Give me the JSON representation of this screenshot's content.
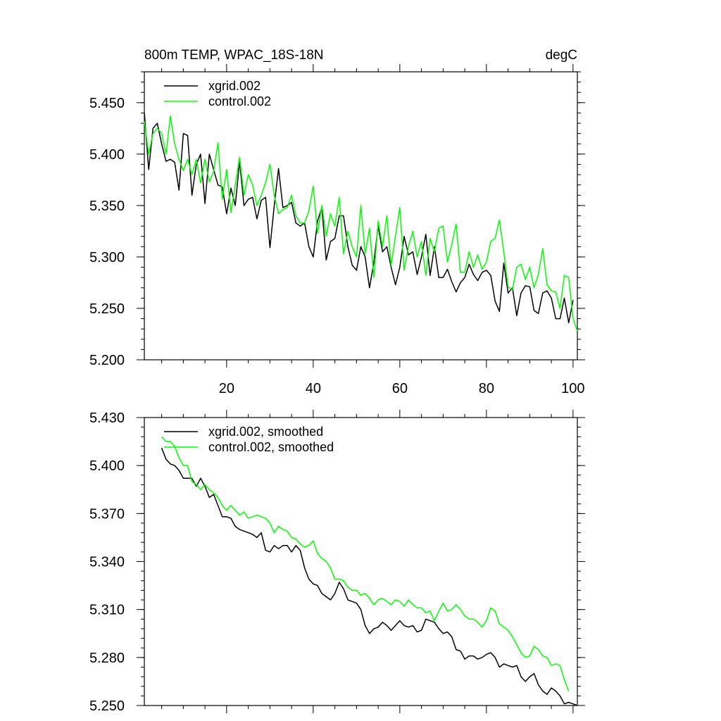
{
  "chart_data": [
    {
      "type": "line",
      "title": "800m TEMP, WPAC_18S-18N",
      "units": "degC",
      "xlim": [
        1,
        101
      ],
      "ylim": [
        5.2,
        5.48
      ],
      "x_ticks": [
        20,
        40,
        60,
        80,
        100
      ],
      "x_tick_labels": [
        "20",
        "40",
        "60",
        "80",
        "100"
      ],
      "y_ticks": [
        5.2,
        5.25,
        5.3,
        5.35,
        5.4,
        5.45
      ],
      "y_tick_labels": [
        "5.200",
        "5.250",
        "5.300",
        "5.350",
        "5.400",
        "5.450"
      ],
      "legend_position": "top-left",
      "x_start": 1,
      "series": [
        {
          "name": "xgrid.002",
          "color": "#000000",
          "values": [
            5.44,
            5.385,
            5.425,
            5.43,
            5.41,
            5.393,
            5.395,
            5.392,
            5.365,
            5.42,
            5.418,
            5.36,
            5.39,
            5.4,
            5.352,
            5.4,
            5.385,
            5.37,
            5.368,
            5.342,
            5.367,
            5.35,
            5.393,
            5.35,
            5.356,
            5.358,
            5.337,
            5.355,
            5.358,
            5.309,
            5.35,
            5.386,
            5.348,
            5.35,
            5.353,
            5.333,
            5.33,
            5.333,
            5.31,
            5.3,
            5.335,
            5.348,
            5.297,
            5.315,
            5.318,
            5.34,
            5.34,
            5.31,
            5.292,
            5.287,
            5.31,
            5.3,
            5.27,
            5.295,
            5.33,
            5.305,
            5.31,
            5.29,
            5.273,
            5.29,
            5.32,
            5.302,
            5.305,
            5.283,
            5.3,
            5.322,
            5.282,
            5.31,
            5.28,
            5.28,
            5.288,
            5.276,
            5.266,
            5.275,
            5.28,
            5.293,
            5.283,
            5.277,
            5.285,
            5.287,
            5.282,
            5.257,
            5.247,
            5.294,
            5.265,
            5.27,
            5.243,
            5.265,
            5.272,
            5.271,
            5.248,
            5.245,
            5.265,
            5.267,
            5.26,
            5.24,
            5.24,
            5.26,
            5.236,
            5.258
          ]
        },
        {
          "name": "control.002",
          "color": "#00ff00",
          "values": [
            5.432,
            5.4,
            5.42,
            5.425,
            5.42,
            5.4,
            5.437,
            5.41,
            5.395,
            5.384,
            5.395,
            5.38,
            5.395,
            5.372,
            5.395,
            5.373,
            5.383,
            5.411,
            5.356,
            5.385,
            5.343,
            5.37,
            5.397,
            5.36,
            5.38,
            5.37,
            5.35,
            5.36,
            5.372,
            5.39,
            5.36,
            5.342,
            5.346,
            5.348,
            5.36,
            5.34,
            5.333,
            5.333,
            5.345,
            5.369,
            5.323,
            5.35,
            5.32,
            5.342,
            5.33,
            5.358,
            5.303,
            5.325,
            5.31,
            5.3,
            5.35,
            5.303,
            5.328,
            5.28,
            5.335,
            5.31,
            5.34,
            5.292,
            5.32,
            5.348,
            5.287,
            5.31,
            5.325,
            5.3,
            5.315,
            5.282,
            5.318,
            5.305,
            5.328,
            5.33,
            5.295,
            5.312,
            5.332,
            5.285,
            5.285,
            5.305,
            5.29,
            5.302,
            5.288,
            5.295,
            5.315,
            5.318,
            5.336,
            5.305,
            5.271,
            5.268,
            5.29,
            5.293,
            5.278,
            5.29,
            5.27,
            5.283,
            5.308,
            5.273,
            5.267,
            5.266,
            5.25,
            5.282,
            5.28,
            5.24,
            5.228
          ]
        }
      ]
    },
    {
      "type": "line",
      "title": "",
      "xlim": [
        1,
        101
      ],
      "ylim": [
        5.25,
        5.43
      ],
      "x_ticks": [
        20,
        40,
        60,
        80,
        100
      ],
      "y_ticks": [
        5.25,
        5.28,
        5.31,
        5.34,
        5.37,
        5.4,
        5.43
      ],
      "y_tick_labels": [
        "5.250",
        "5.280",
        "5.310",
        "5.340",
        "5.370",
        "5.400",
        "5.430"
      ],
      "legend_position": "top-left",
      "x_start": 5,
      "series": [
        {
          "name": "xgrid.002, smoothed",
          "color": "#000000",
          "values": [
            5.411,
            5.404,
            5.401,
            5.4,
            5.397,
            5.392,
            5.392,
            5.392,
            5.387,
            5.392,
            5.387,
            5.38,
            5.382,
            5.375,
            5.368,
            5.368,
            5.367,
            5.362,
            5.36,
            5.359,
            5.358,
            5.357,
            5.355,
            5.358,
            5.347,
            5.346,
            5.35,
            5.348,
            5.35,
            5.35,
            5.346,
            5.35,
            5.347,
            5.336,
            5.329,
            5.326,
            5.325,
            5.32,
            5.318,
            5.316,
            5.32,
            5.327,
            5.323,
            5.316,
            5.315,
            5.314,
            5.31,
            5.3,
            5.295,
            5.298,
            5.299,
            5.302,
            5.3,
            5.297,
            5.3,
            5.303,
            5.3,
            5.299,
            5.3,
            5.296,
            5.297,
            5.304,
            5.303,
            5.302,
            5.298,
            5.295,
            5.296,
            5.293,
            5.285,
            5.284,
            5.279,
            5.281,
            5.281,
            5.279,
            5.28,
            5.282,
            5.283,
            5.28,
            5.274,
            5.276,
            5.275,
            5.274,
            5.275,
            5.268,
            5.265,
            5.268,
            5.27,
            5.263,
            5.259,
            5.257,
            5.261,
            5.259,
            5.256,
            5.251,
            5.252,
            5.251,
            5.25
          ]
        },
        {
          "name": "control.002, smoothed",
          "color": "#00ff00",
          "values": [
            5.418,
            5.415,
            5.415,
            5.412,
            5.405,
            5.4,
            5.4,
            5.39,
            5.388,
            5.385,
            5.388,
            5.385,
            5.383,
            5.38,
            5.375,
            5.372,
            5.375,
            5.372,
            5.369,
            5.371,
            5.367,
            5.368,
            5.369,
            5.368,
            5.367,
            5.364,
            5.358,
            5.362,
            5.36,
            5.359,
            5.355,
            5.354,
            5.351,
            5.349,
            5.35,
            5.353,
            5.345,
            5.342,
            5.34,
            5.336,
            5.329,
            5.329,
            5.328,
            5.324,
            5.322,
            5.322,
            5.319,
            5.32,
            5.317,
            5.313,
            5.316,
            5.317,
            5.315,
            5.313,
            5.316,
            5.315,
            5.312,
            5.316,
            5.313,
            5.311,
            5.311,
            5.308,
            5.309,
            5.303,
            5.309,
            5.314,
            5.309,
            5.31,
            5.313,
            5.31,
            5.306,
            5.304,
            5.304,
            5.302,
            5.299,
            5.303,
            5.311,
            5.309,
            5.301,
            5.299,
            5.297,
            5.293,
            5.288,
            5.283,
            5.28,
            5.281,
            5.287,
            5.285,
            5.281,
            5.28,
            5.275,
            5.276,
            5.275,
            5.266,
            5.259
          ]
        }
      ]
    }
  ]
}
